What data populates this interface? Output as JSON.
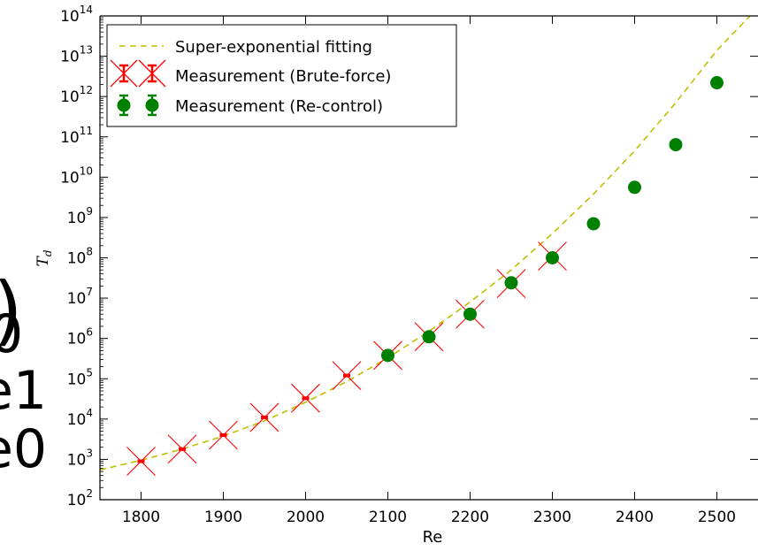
{
  "background_fragments": [
    ")",
    "0",
    "e1",
    "e0"
  ],
  "chart_data": {
    "type": "scatter",
    "title": "",
    "xlabel": "Re",
    "ylabel": "T_d",
    "ylabel_main": "T",
    "ylabel_sub": "d",
    "xlim": [
      1750,
      2550
    ],
    "ylim_exp": [
      2,
      14
    ],
    "y_scale": "log",
    "x_ticks": [
      1800,
      1900,
      2000,
      2100,
      2200,
      2300,
      2400,
      2500
    ],
    "y_ticks": [
      {
        "base": "10",
        "exp": "2"
      },
      {
        "base": "10",
        "exp": "3"
      },
      {
        "base": "10",
        "exp": "4"
      },
      {
        "base": "10",
        "exp": "5"
      },
      {
        "base": "10",
        "exp": "6"
      },
      {
        "base": "10",
        "exp": "7"
      },
      {
        "base": "10",
        "exp": "8"
      },
      {
        "base": "10",
        "exp": "9"
      },
      {
        "base": "10",
        "exp": "10"
      },
      {
        "base": "10",
        "exp": "11"
      },
      {
        "base": "10",
        "exp": "12"
      },
      {
        "base": "10",
        "exp": "13"
      },
      {
        "base": "10",
        "exp": "14"
      }
    ],
    "grid": false,
    "legend_position": "top-left",
    "series": [
      {
        "name": "Super-exponential fitting",
        "kind": "line",
        "color": "#bfbf00",
        "x": [
          1750,
          1800,
          1850,
          1900,
          1950,
          2000,
          2050,
          2100,
          2150,
          2200,
          2250,
          2300,
          2350,
          2400,
          2450,
          2500,
          2550
        ],
        "y": [
          550,
          950,
          1800,
          3800,
          9000,
          26000,
          85000,
          330000,
          1500000,
          8000000,
          50000000,
          400000000,
          3800000000,
          45000000000,
          700000000000,
          14000000000000,
          160000000000000
        ]
      },
      {
        "name": "Measurement (Brute-force)",
        "kind": "errorbar-x",
        "color": "#ff0000",
        "x": [
          1800,
          1850,
          1900,
          1950,
          2000,
          2050,
          2100,
          2150,
          2200,
          2250,
          2300
        ],
        "y": [
          900,
          1800,
          4000,
          11000,
          33000,
          120000,
          380000,
          1100000,
          4000000,
          23000000,
          110000000
        ]
      },
      {
        "name": "Measurement (Re-control)",
        "kind": "errorbar-dot",
        "color": "#008000",
        "x": [
          2100,
          2150,
          2200,
          2250,
          2300,
          2350,
          2400,
          2450,
          2500
        ],
        "y": [
          380000,
          1100000,
          4000000,
          24000000,
          100000000,
          700000000,
          5600000000,
          64000000000,
          2200000000000
        ]
      }
    ]
  }
}
